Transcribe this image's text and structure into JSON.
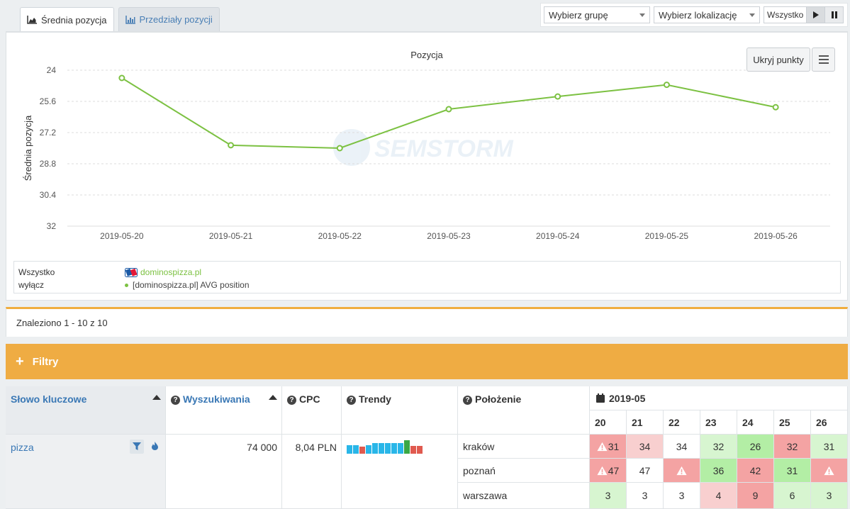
{
  "tabs": [
    {
      "label": "Średnia pozycja",
      "icon": "area-chart-icon",
      "active": true
    },
    {
      "label": "Przedziały pozycji",
      "icon": "bar-chart-icon",
      "active": false
    }
  ],
  "controls": {
    "group_select": "Wybierz grupę",
    "location_select": "Wybierz lokalizację",
    "all_label": "Wszystko"
  },
  "chart": {
    "hide_points_label": "Ukryj punkty",
    "watermark": "SEMSTORM"
  },
  "legend": {
    "all": "Wszystko",
    "off": "wyłącz",
    "site": "dominospizza.pl",
    "series": "[dominospizza.pl] AVG position"
  },
  "chart_data": {
    "type": "line",
    "title": "Pozycja",
    "xlabel": "",
    "ylabel": "Średnia pozycja",
    "y_reversed": true,
    "ylim": [
      24,
      32
    ],
    "yticks": [
      "24",
      "25.6",
      "27.2",
      "28.8",
      "30.4",
      "32"
    ],
    "x": [
      "2019-05-20",
      "2019-05-21",
      "2019-05-22",
      "2019-05-23",
      "2019-05-24",
      "2019-05-25",
      "2019-05-26"
    ],
    "series": [
      {
        "name": "[dominospizza.pl] AVG position",
        "color": "#7cc142",
        "values": [
          24.4,
          27.85,
          28.0,
          26.0,
          25.35,
          24.75,
          25.9
        ]
      }
    ],
    "grid": true
  },
  "results": {
    "text": "Znaleziono 1 - 10 z 10"
  },
  "filters": {
    "label": "Filtry"
  },
  "table": {
    "headers": {
      "keyword": "Słowo kluczowe",
      "searches": "Wyszukiwania",
      "cpc": "CPC",
      "trends": "Trendy",
      "location": "Położenie",
      "month": "2019-05"
    },
    "days": [
      "20",
      "21",
      "22",
      "23",
      "24",
      "25",
      "26"
    ],
    "row": {
      "keyword": "pizza",
      "searches": "74 000",
      "cpc": "8,04 PLN",
      "trend_bars": [
        {
          "h": 0.6,
          "c": "#29b6e8"
        },
        {
          "h": 0.6,
          "c": "#29b6e8"
        },
        {
          "h": 0.5,
          "c": "#e05a4f"
        },
        {
          "h": 0.6,
          "c": "#29b6e8"
        },
        {
          "h": 0.75,
          "c": "#29b6e8"
        },
        {
          "h": 0.75,
          "c": "#29b6e8"
        },
        {
          "h": 0.75,
          "c": "#29b6e8"
        },
        {
          "h": 0.75,
          "c": "#29b6e8"
        },
        {
          "h": 0.75,
          "c": "#29b6e8"
        },
        {
          "h": 0.95,
          "c": "#3aa845"
        },
        {
          "h": 0.55,
          "c": "#e05a4f"
        },
        {
          "h": 0.55,
          "c": "#e05a4f"
        }
      ],
      "locations": [
        {
          "name": "kraków",
          "cells": [
            {
              "v": "31",
              "c": "red",
              "warn": true
            },
            {
              "v": "34",
              "c": "lred"
            },
            {
              "v": "34",
              "c": "white"
            },
            {
              "v": "32",
              "c": "lgreen"
            },
            {
              "v": "26",
              "c": "green"
            },
            {
              "v": "32",
              "c": "red"
            },
            {
              "v": "31",
              "c": "lgreen"
            }
          ]
        },
        {
          "name": "poznań",
          "cells": [
            {
              "v": "47",
              "c": "red",
              "warn": true
            },
            {
              "v": "47",
              "c": "white"
            },
            {
              "v": "",
              "c": "red",
              "warn": true
            },
            {
              "v": "36",
              "c": "green"
            },
            {
              "v": "42",
              "c": "red"
            },
            {
              "v": "31",
              "c": "green"
            },
            {
              "v": "",
              "c": "red",
              "warn": true
            }
          ]
        },
        {
          "name": "warszawa",
          "cells": [
            {
              "v": "3",
              "c": "lgreen"
            },
            {
              "v": "3",
              "c": "white"
            },
            {
              "v": "3",
              "c": "white"
            },
            {
              "v": "4",
              "c": "lred"
            },
            {
              "v": "9",
              "c": "red"
            },
            {
              "v": "6",
              "c": "lgreen"
            },
            {
              "v": "3",
              "c": "lgreen"
            }
          ]
        }
      ]
    }
  }
}
